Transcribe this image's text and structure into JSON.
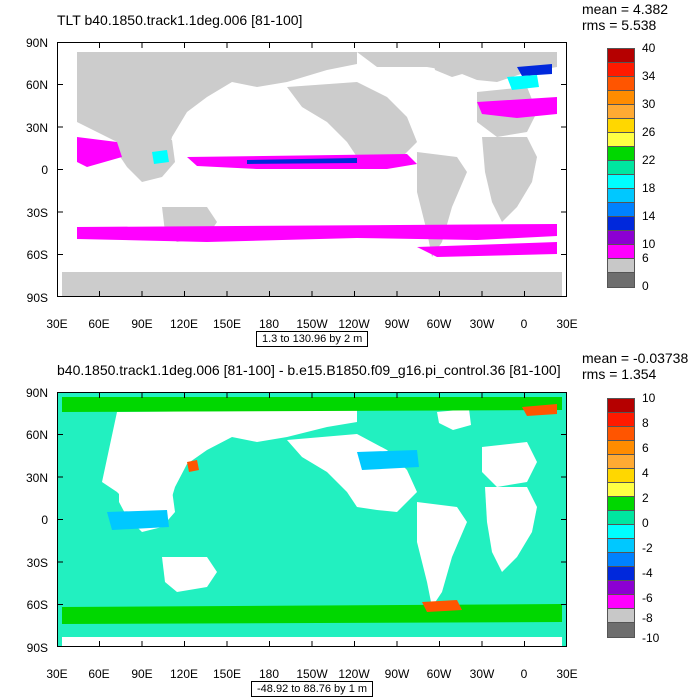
{
  "panels": [
    {
      "id": "top",
      "title": "TLT b40.1850.track1.1deg.006 [81-100]",
      "mean": "mean = 4.382",
      "rms": "rms = 5.538",
      "range": "1.3 to 130.96 by 2 m",
      "lat_labels": [
        "90N",
        "60N",
        "30N",
        "0",
        "30S",
        "60S",
        "90S"
      ],
      "lon_labels": [
        "30E",
        "60E",
        "90E",
        "120E",
        "150E",
        "180",
        "150W",
        "120W",
        "90W",
        "60W",
        "30W",
        "0",
        "30E"
      ],
      "colorbar_labels": [
        "40",
        "34",
        "30",
        "26",
        "22",
        "18",
        "14",
        "10",
        "6",
        "0"
      ],
      "colorbar_colors": [
        "#b50000",
        "#ff1a00",
        "#ff5500",
        "#ff8c00",
        "#ffaa33",
        "#ffd700",
        "#ffff44",
        "#00d700",
        "#00e6a0",
        "#00ffff",
        "#00c8ff",
        "#0082ff",
        "#0028dc",
        "#8c00d2",
        "#ff00ff",
        "#c8c8c8",
        "#6e6e6e"
      ],
      "land_color": "#cccccc",
      "ocean_color": "#ffffff"
    },
    {
      "id": "bottom",
      "title": "b40.1850.track1.1deg.006 [81-100] - b.e15.B1850.f09_g16.pi_control.36 [81-100]",
      "mean": "mean = -0.03738",
      "rms": "rms = 1.354",
      "range": "-48.92 to 88.76 by 1 m",
      "lat_labels": [
        "90N",
        "60N",
        "30N",
        "0",
        "30S",
        "60S",
        "90S"
      ],
      "lon_labels": [
        "30E",
        "60E",
        "90E",
        "120E",
        "150E",
        "180",
        "150W",
        "120W",
        "90W",
        "60W",
        "30W",
        "0",
        "30E"
      ],
      "colorbar_labels": [
        "10",
        "8",
        "6",
        "4",
        "2",
        "0",
        "-2",
        "-4",
        "-6",
        "-8",
        "-10"
      ],
      "colorbar_colors": [
        "#b50000",
        "#ff1a00",
        "#ff5500",
        "#ff8c00",
        "#ffaa33",
        "#ffd700",
        "#ffff44",
        "#00d700",
        "#00e6a0",
        "#00ffff",
        "#00c8ff",
        "#0082ff",
        "#0028dc",
        "#8c00d2",
        "#ff00ff",
        "#c8c8c8",
        "#6e6e6e"
      ],
      "land_color": "#ffffff",
      "ocean_color": "#22f0c0"
    }
  ]
}
